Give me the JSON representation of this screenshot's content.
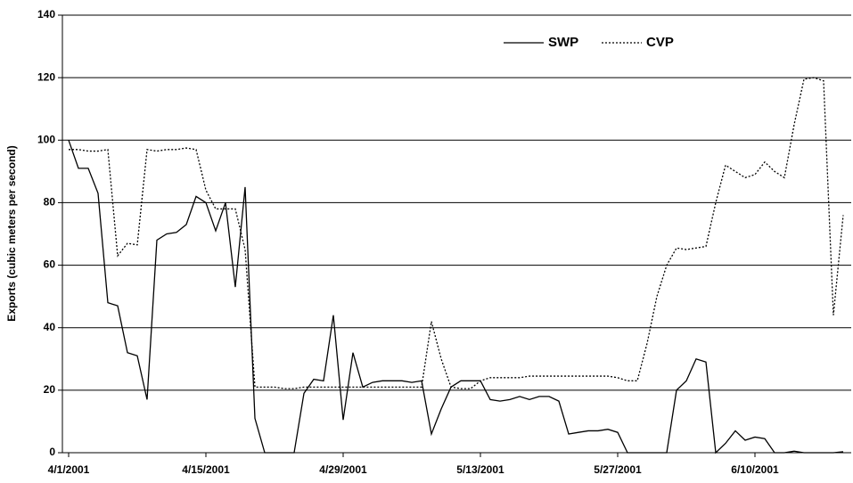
{
  "chart_data": {
    "type": "line",
    "y_axis_label": "Exports (cubic meters per second)",
    "categories": [
      "4/1/2001",
      null,
      null,
      null,
      null,
      null,
      null,
      null,
      null,
      null,
      null,
      null,
      null,
      null,
      "4/15/2001",
      null,
      null,
      null,
      null,
      null,
      null,
      null,
      null,
      null,
      null,
      null,
      null,
      null,
      "4/29/2001",
      null,
      null,
      null,
      null,
      null,
      null,
      null,
      null,
      null,
      null,
      null,
      null,
      null,
      "5/13/2001",
      null,
      null,
      null,
      null,
      null,
      null,
      null,
      null,
      null,
      null,
      null,
      null,
      null,
      "5/27/2001",
      null,
      null,
      null,
      null,
      null,
      null,
      null,
      null,
      null,
      null,
      null,
      null,
      null,
      "6/10/2001",
      null,
      null,
      null,
      null,
      null,
      null,
      null,
      null,
      null
    ],
    "series": [
      {
        "name": "SWP",
        "color": "#000000",
        "line_style": "solid",
        "values": [
          100,
          91,
          91,
          83,
          48,
          47,
          32,
          31,
          17,
          68,
          70,
          70.5,
          73,
          82,
          80,
          71,
          80,
          53,
          85,
          11,
          0,
          0,
          0,
          0,
          19,
          23.5,
          23,
          44,
          10.5,
          32,
          21,
          22.5,
          23,
          23,
          23,
          22.5,
          23,
          6,
          14,
          21,
          23,
          23,
          23,
          17,
          16.5,
          17,
          18,
          17,
          18,
          18,
          16.5,
          6,
          6.5,
          7,
          7,
          7.5,
          6.5,
          0,
          0,
          0,
          0,
          0,
          20,
          23,
          30,
          29,
          0,
          3,
          7,
          4,
          5,
          4.5,
          0,
          0,
          0.5,
          0,
          0,
          0,
          0,
          0.3
        ]
      },
      {
        "name": "CVP",
        "color": "#000000",
        "line_style": "dotted",
        "values": [
          97,
          97,
          96.5,
          96.5,
          97,
          63,
          67,
          66.5,
          97,
          96.5,
          97,
          97,
          97.5,
          97,
          84,
          78,
          78,
          78,
          65,
          21,
          21,
          21,
          20.5,
          20.5,
          21,
          21,
          21,
          21,
          21,
          21,
          21,
          21,
          21,
          21,
          21,
          21,
          21,
          42,
          30,
          21,
          20.5,
          20.5,
          23,
          24,
          24,
          24,
          24,
          24.5,
          24.5,
          24.5,
          24.5,
          24.5,
          24.5,
          24.5,
          24.5,
          24.5,
          24,
          23,
          23,
          35,
          50,
          60,
          65.5,
          65,
          65.5,
          66,
          80,
          92,
          90,
          88,
          89,
          93,
          90,
          88,
          105,
          119.5,
          120,
          119,
          44,
          76
        ]
      }
    ],
    "ylim": [
      0,
      140
    ],
    "yticks": [
      0,
      20,
      40,
      60,
      80,
      100,
      120,
      140
    ],
    "grid": true,
    "legend": "top-right"
  }
}
